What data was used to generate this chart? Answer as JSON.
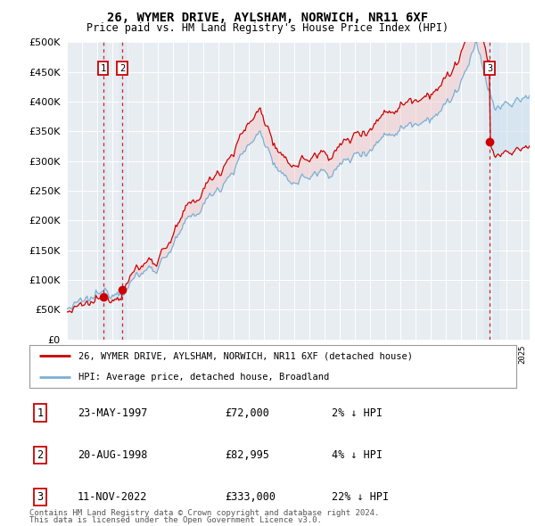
{
  "title": "26, WYMER DRIVE, AYLSHAM, NORWICH, NR11 6XF",
  "subtitle": "Price paid vs. HM Land Registry's House Price Index (HPI)",
  "ylim": [
    0,
    500000
  ],
  "yticks": [
    0,
    50000,
    100000,
    150000,
    200000,
    250000,
    300000,
    350000,
    400000,
    450000,
    500000
  ],
  "xlim_start": 1995.0,
  "xlim_end": 2025.5,
  "sale_dates": [
    1997.388,
    1998.638,
    2022.861
  ],
  "sale_prices": [
    72000,
    82995,
    333000
  ],
  "sale_labels": [
    "1",
    "2",
    "3"
  ],
  "hpi_color": "#7ab0d4",
  "sale_color": "#cc0000",
  "vline_color": "#cc0000",
  "shade_color_blue": "#c8dff0",
  "shade_color_red": "#f5c8c8",
  "legend_items": [
    "26, WYMER DRIVE, AYLSHAM, NORWICH, NR11 6XF (detached house)",
    "HPI: Average price, detached house, Broadland"
  ],
  "table_rows": [
    {
      "num": "1",
      "date": "23-MAY-1997",
      "price": "£72,000",
      "hpi": "2% ↓ HPI"
    },
    {
      "num": "2",
      "date": "20-AUG-1998",
      "price": "£82,995",
      "hpi": "4% ↓ HPI"
    },
    {
      "num": "3",
      "date": "11-NOV-2022",
      "price": "£333,000",
      "hpi": "22% ↓ HPI"
    }
  ],
  "footnote1": "Contains HM Land Registry data © Crown copyright and database right 2024.",
  "footnote2": "This data is licensed under the Open Government Licence v3.0.",
  "plot_bg_color": "#e8edf2"
}
